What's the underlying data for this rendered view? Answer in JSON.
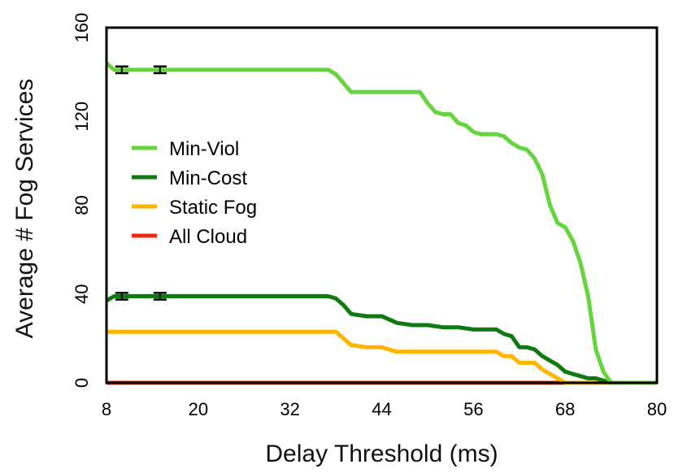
{
  "chart_data": {
    "type": "line",
    "title": "",
    "xlabel": "Delay Threshold (ms)",
    "ylabel": "Average # Fog Services",
    "xlim": [
      8,
      80
    ],
    "ylim": [
      0,
      160
    ],
    "xticks": [
      8,
      20,
      32,
      44,
      56,
      68,
      80
    ],
    "yticks": [
      0,
      40,
      80,
      120,
      160
    ],
    "grid": false,
    "legend_position": "left-center",
    "series": [
      {
        "name": "Min-Viol",
        "color": "#66d43c",
        "x": [
          8,
          9,
          10,
          12,
          16,
          20,
          24,
          28,
          32,
          36,
          37,
          38,
          39,
          40,
          42,
          44,
          46,
          48,
          49,
          50,
          51,
          52,
          53,
          54,
          55,
          56,
          57,
          58,
          59,
          60,
          61,
          62,
          63,
          64,
          65,
          66,
          67,
          68,
          69,
          70,
          71,
          72,
          73,
          74,
          75,
          76,
          78,
          80
        ],
        "y": [
          144,
          141,
          141,
          141,
          141,
          141,
          141,
          141,
          141,
          141,
          141,
          139,
          135,
          131,
          131,
          131,
          131,
          131,
          131,
          126,
          122,
          121,
          121,
          117,
          116,
          113,
          112,
          112,
          112,
          111,
          108,
          106,
          105,
          101,
          94,
          80,
          72,
          70,
          64,
          54,
          39,
          15,
          5,
          0,
          0,
          0,
          0,
          0
        ]
      },
      {
        "name": "Min-Cost",
        "color": "#0f7a12",
        "x": [
          8,
          9,
          10,
          12,
          16,
          20,
          24,
          28,
          32,
          36,
          37,
          38,
          39,
          40,
          42,
          44,
          46,
          48,
          49,
          50,
          52,
          54,
          56,
          58,
          59,
          60,
          61,
          62,
          63,
          64,
          65,
          66,
          67,
          68,
          69,
          70,
          71,
          72,
          73,
          74,
          75,
          76,
          78,
          80
        ],
        "y": [
          37,
          39,
          39,
          39,
          39,
          39,
          39,
          39,
          39,
          39,
          39,
          38,
          35,
          31,
          30,
          30,
          27,
          26,
          26,
          26,
          25,
          25,
          24,
          24,
          24,
          22,
          21,
          16,
          16,
          15,
          12,
          10,
          8,
          5,
          4,
          3,
          2,
          2,
          1,
          0,
          0,
          0,
          0,
          0
        ]
      },
      {
        "name": "Static Fog",
        "color": "#ffb400",
        "x": [
          8,
          12,
          16,
          20,
          24,
          28,
          32,
          36,
          37,
          38,
          39,
          40,
          42,
          44,
          46,
          48,
          50,
          52,
          54,
          56,
          58,
          59,
          60,
          61,
          62,
          63,
          64,
          65,
          66,
          67,
          68,
          70,
          72,
          74,
          76,
          78,
          80
        ],
        "y": [
          23,
          23,
          23,
          23,
          23,
          23,
          23,
          23,
          23,
          23,
          20,
          17,
          16,
          16,
          14,
          14,
          14,
          14,
          14,
          14,
          14,
          14,
          12,
          12,
          9,
          9,
          9,
          6,
          4,
          2,
          0,
          0,
          0,
          0,
          0,
          0,
          0
        ]
      },
      {
        "name": "All Cloud",
        "color": "#ee2b12",
        "x": [
          8,
          80
        ],
        "y": [
          0,
          0
        ]
      }
    ],
    "error_bars": [
      {
        "series": "Min-Viol",
        "x": 10,
        "y": 141,
        "err": 1.5
      },
      {
        "series": "Min-Viol",
        "x": 15,
        "y": 141,
        "err": 1.5
      },
      {
        "series": "Min-Cost",
        "x": 10,
        "y": 39,
        "err": 1.5
      },
      {
        "series": "Min-Cost",
        "x": 15,
        "y": 39,
        "err": 1.5
      }
    ]
  }
}
